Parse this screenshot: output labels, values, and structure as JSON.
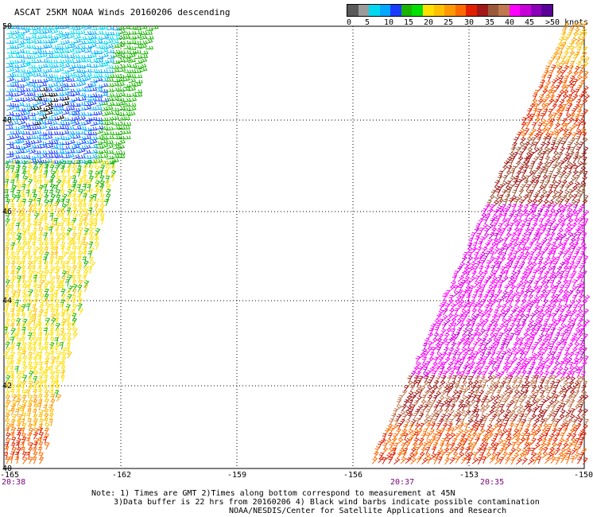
{
  "title": "ASCAT 25KM NOAA Winds 20160206 descending",
  "legend": {
    "colors": [
      "#5a5a5a",
      "#9b9b9b",
      "#00d8f0",
      "#00a8ff",
      "#1a3cff",
      "#18b400",
      "#00e000",
      "#ffe000",
      "#ffc000",
      "#ff9800",
      "#ff6a00",
      "#e02000",
      "#a01818",
      "#9a5a3a",
      "#c07850",
      "#ff00ff",
      "#c800d8",
      "#8a00b8",
      "#5a0098"
    ],
    "labels": [
      {
        "text": "0"
      },
      {
        "text": "5"
      },
      {
        "text": "10"
      },
      {
        "text": "15"
      },
      {
        "text": "20"
      },
      {
        "text": "25"
      },
      {
        "text": "30"
      },
      {
        "text": "35"
      },
      {
        "text": "40"
      },
      {
        "text": "45"
      },
      {
        "text": ">50 knots"
      }
    ]
  },
  "axes": {
    "lat_labels": [
      "50",
      "48",
      "46",
      "44",
      "42",
      "40"
    ],
    "lon_labels": [
      "-165",
      "-162",
      "-159",
      "-156",
      "-153",
      "-150"
    ]
  },
  "times": [
    "20:38",
    "20:37",
    "20:35"
  ],
  "notes": [
    "Note: 1) Times are GMT 2)Times along bottom correspond to measurement at 45N",
    "3)Data buffer is 22 hrs from 20160206 4) Black wind barbs indicate possible contamination",
    "NOAA/NESDIS/Center for Satellite Applications and Research"
  ],
  "wind_swaths": [
    {
      "name": "west-swath",
      "side": "west"
    },
    {
      "name": "east-swath",
      "side": "east"
    }
  ]
}
